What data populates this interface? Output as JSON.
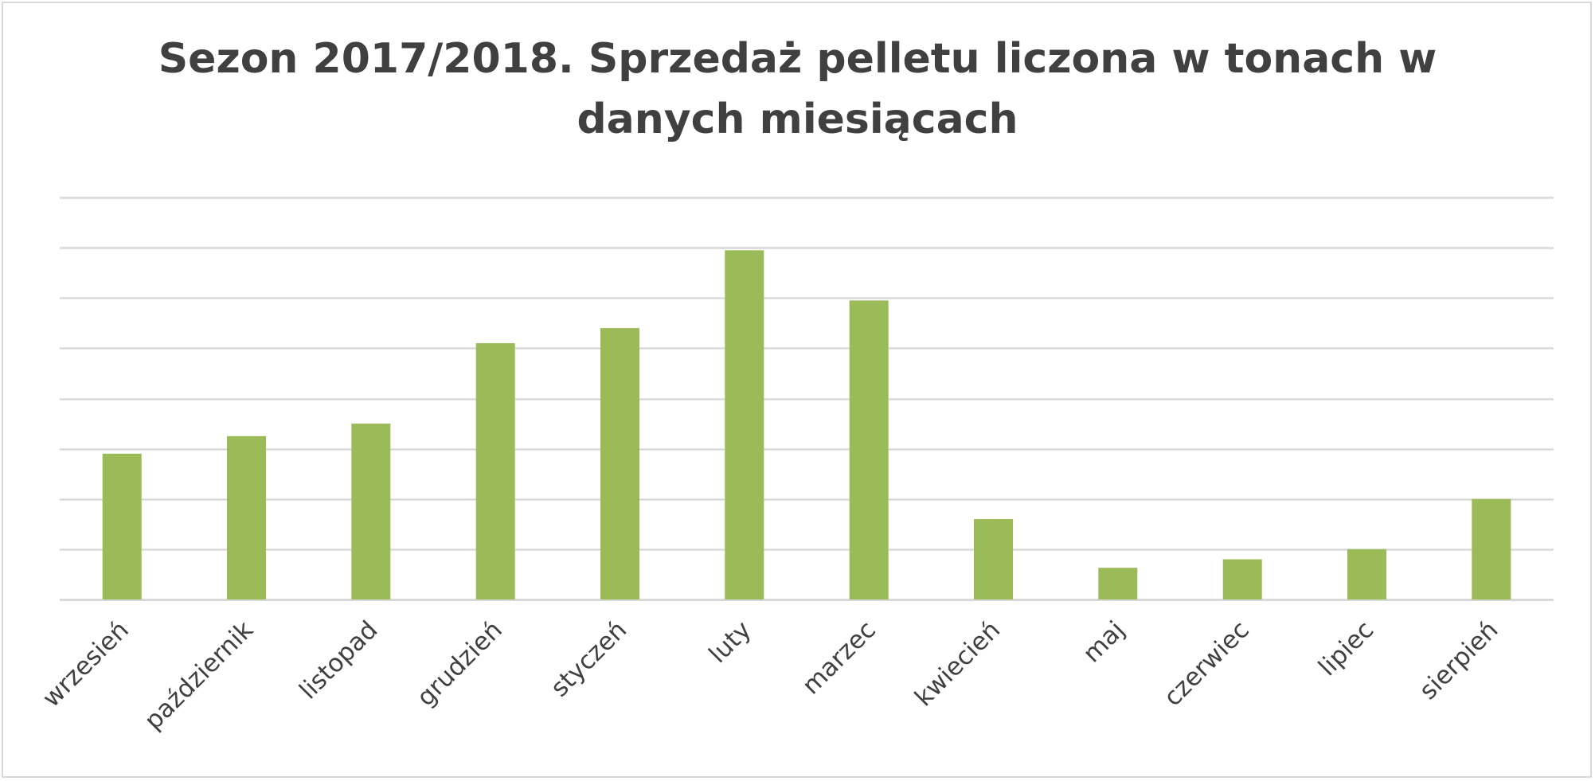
{
  "chart_data": {
    "type": "bar",
    "title_lines": [
      "Sezon 2017/2018. Sprzedaż pelletu liczona w tonach w",
      "danych miesiącach"
    ],
    "xlabel": "",
    "ylabel": "",
    "categories": [
      "wrzesień",
      "październik",
      "listopad",
      "grudzień",
      "styczeń",
      "luty",
      "marzec",
      "kwiecień",
      "maj",
      "czerwiec",
      "lipiec",
      "sierpień"
    ],
    "series": [
      {
        "values": [
          2.9,
          3.25,
          3.5,
          5.1,
          5.4,
          6.95,
          5.95,
          1.6,
          0.63,
          0.8,
          1.0,
          2.0
        ]
      }
    ],
    "ylim": [
      0,
      8
    ],
    "gridlines": 8,
    "y_tick_labels_shown": false,
    "grid": true,
    "legend": "none",
    "bar_color": "#9bbb59",
    "grid_color": "#d9d9d9",
    "label_color": "#404040"
  }
}
